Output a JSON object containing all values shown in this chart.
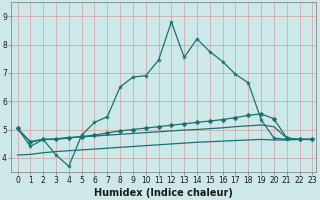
{
  "xlabel": "Humidex (Indice chaleur)",
  "xlim": [
    -0.5,
    23.3
  ],
  "ylim": [
    3.5,
    9.5
  ],
  "bg_color": "#cce8e8",
  "plot_bg_color": "#cce8e8",
  "grid_color": "#d4a0a0",
  "line_color": "#1a7070",
  "line1_x": [
    0,
    1,
    2,
    3,
    4,
    5,
    6,
    7,
    8,
    9,
    10,
    11,
    12,
    13,
    14,
    15,
    16,
    17,
    18,
    19,
    20,
    21,
    22,
    23
  ],
  "line1_y": [
    5.05,
    4.4,
    4.65,
    4.1,
    3.7,
    4.8,
    5.25,
    5.45,
    6.5,
    6.85,
    6.9,
    7.45,
    8.8,
    7.55,
    8.2,
    7.75,
    7.4,
    6.95,
    6.65,
    5.35,
    4.7,
    4.65,
    4.65,
    4.65
  ],
  "line2_x": [
    0,
    1,
    2,
    3,
    4,
    5,
    6,
    7,
    8,
    9,
    10,
    11,
    12,
    13,
    14,
    15,
    16,
    17,
    18,
    19,
    20,
    21,
    22,
    23
  ],
  "line2_y": [
    5.05,
    4.55,
    4.65,
    4.65,
    4.7,
    4.75,
    4.8,
    4.88,
    4.95,
    5.0,
    5.05,
    5.1,
    5.15,
    5.2,
    5.25,
    5.3,
    5.35,
    5.42,
    5.5,
    5.55,
    5.38,
    4.7,
    4.65,
    4.65
  ],
  "line3_x": [
    0,
    1,
    2,
    3,
    4,
    5,
    6,
    7,
    8,
    9,
    10,
    11,
    12,
    13,
    14,
    15,
    16,
    17,
    18,
    19,
    20,
    21,
    22,
    23
  ],
  "line3_y": [
    5.0,
    4.58,
    4.65,
    4.67,
    4.72,
    4.74,
    4.77,
    4.8,
    4.83,
    4.86,
    4.89,
    4.92,
    4.95,
    4.98,
    5.0,
    5.03,
    5.06,
    5.1,
    5.13,
    5.16,
    5.1,
    4.7,
    4.65,
    4.65
  ],
  "line4_x": [
    0,
    1,
    2,
    3,
    4,
    5,
    6,
    7,
    8,
    9,
    10,
    11,
    12,
    13,
    14,
    15,
    16,
    17,
    18,
    19,
    20,
    21,
    22,
    23
  ],
  "line4_y": [
    4.1,
    4.12,
    4.18,
    4.22,
    4.25,
    4.28,
    4.31,
    4.34,
    4.37,
    4.4,
    4.43,
    4.46,
    4.49,
    4.52,
    4.55,
    4.57,
    4.59,
    4.61,
    4.63,
    4.65,
    4.63,
    4.63,
    4.65,
    4.65
  ],
  "xticks": [
    0,
    1,
    2,
    3,
    4,
    5,
    6,
    7,
    8,
    9,
    10,
    11,
    12,
    13,
    14,
    15,
    16,
    17,
    18,
    19,
    20,
    21,
    22,
    23
  ],
  "yticks": [
    4,
    5,
    6,
    7,
    8,
    9
  ],
  "xlabel_fontsize": 7,
  "tick_fontsize": 5.5
}
